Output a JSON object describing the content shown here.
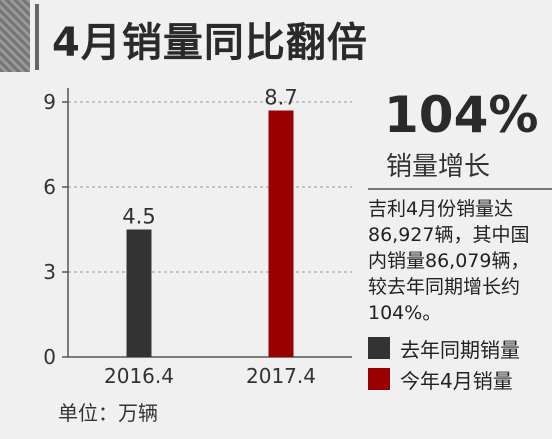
{
  "header": {
    "title": "4月销量同比翻倍"
  },
  "summary": {
    "percent": "104%",
    "label": "销量增长",
    "description": "吉利4月份销量达86,927辆，其中国内销量86,079辆，较去年同期增长约104%。",
    "unit": "单位：万辆"
  },
  "colors": {
    "last_year": "#333333",
    "this_year": "#990000",
    "background": "#f0f0f0",
    "grid": "#999999"
  },
  "chart_data": {
    "type": "bar",
    "categories": [
      "2016.4",
      "2017.4"
    ],
    "values": [
      4.5,
      8.7
    ],
    "value_labels": [
      "4.5",
      "8.7"
    ],
    "bar_colors": [
      "#333333",
      "#990000"
    ],
    "ylim": [
      0,
      9
    ],
    "yticks": [
      0,
      3,
      6,
      9
    ],
    "grid": true,
    "legend": [
      {
        "label": "去年同期销量",
        "color": "#333333"
      },
      {
        "label": "今年4月销量",
        "color": "#990000"
      }
    ]
  }
}
